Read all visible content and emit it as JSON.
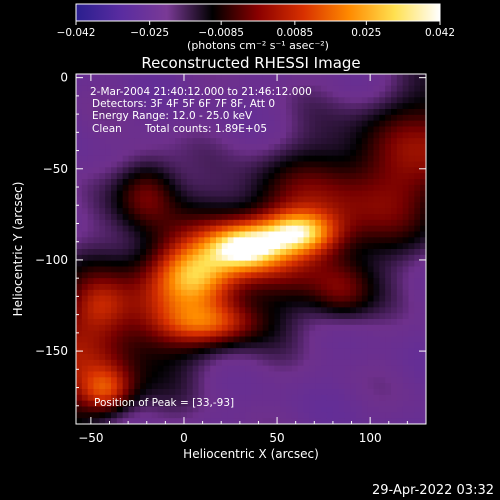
{
  "chart_data": {
    "type": "heatmap",
    "title": "Reconstructed RHESSI Image",
    "xlabel": "Heliocentric X (arcsec)",
    "ylabel": "Heliocentric Y (arcsec)",
    "xlim": [
      -58,
      130
    ],
    "ylim": [
      -190,
      2
    ],
    "x_ticks": [
      -50,
      0,
      50,
      100
    ],
    "y_ticks": [
      0,
      -50,
      -100,
      -150
    ],
    "colorbar": {
      "min": -0.042,
      "max": 0.042,
      "tick_values": [
        -0.042,
        -0.025,
        -0.0085,
        0.0085,
        0.025,
        0.042
      ],
      "tick_labels": [
        "−0.042",
        "−0.025",
        "−0.0085",
        "0.0085",
        "0.025",
        "0.042"
      ],
      "unit": "(photons cm⁻² s⁻¹ asec⁻²)",
      "colors": [
        "#2a1f8f",
        "#5a2ca0",
        "#7a3a96",
        "#000000",
        "#8a0000",
        "#d83000",
        "#ff8a00",
        "#ffe050",
        "#ffffff"
      ]
    },
    "peak": [
      33,
      -93
    ],
    "bright_sources": [
      {
        "x": 33,
        "y": -93,
        "rel": 1.0,
        "sx": 14,
        "sy": 9
      },
      {
        "x": 62,
        "y": -85,
        "rel": 0.85,
        "sx": 14,
        "sy": 8
      },
      {
        "x": 5,
        "y": -108,
        "rel": 0.7,
        "sx": 15,
        "sy": 12
      },
      {
        "x": -20,
        "y": -62,
        "rel": 0.55,
        "sx": 12,
        "sy": 14
      },
      {
        "x": 15,
        "y": -135,
        "rel": 0.5,
        "sx": 18,
        "sy": 8
      },
      {
        "x": -42,
        "y": -172,
        "rel": 0.6,
        "sx": 10,
        "sy": 9
      },
      {
        "x": 85,
        "y": -118,
        "rel": 0.4,
        "sx": 12,
        "sy": 12
      },
      {
        "x": -45,
        "y": -125,
        "rel": 0.25,
        "sx": 10,
        "sy": 10
      }
    ]
  },
  "annotations": {
    "time_range": "2-Mar-2004 21:40:12.000 to 21:46:12.000",
    "detectors": "Detectors: 3F 4F 5F 6F 7F 8F, Att 0",
    "energy": "Energy Range: 12.0 - 25.0 keV",
    "method": "Clean",
    "total_counts": "Total counts: 1.89E+05",
    "peak_label": "Position of Peak = [33,-93]"
  },
  "footer": {
    "timestamp": "29-Apr-2022 03:32"
  }
}
